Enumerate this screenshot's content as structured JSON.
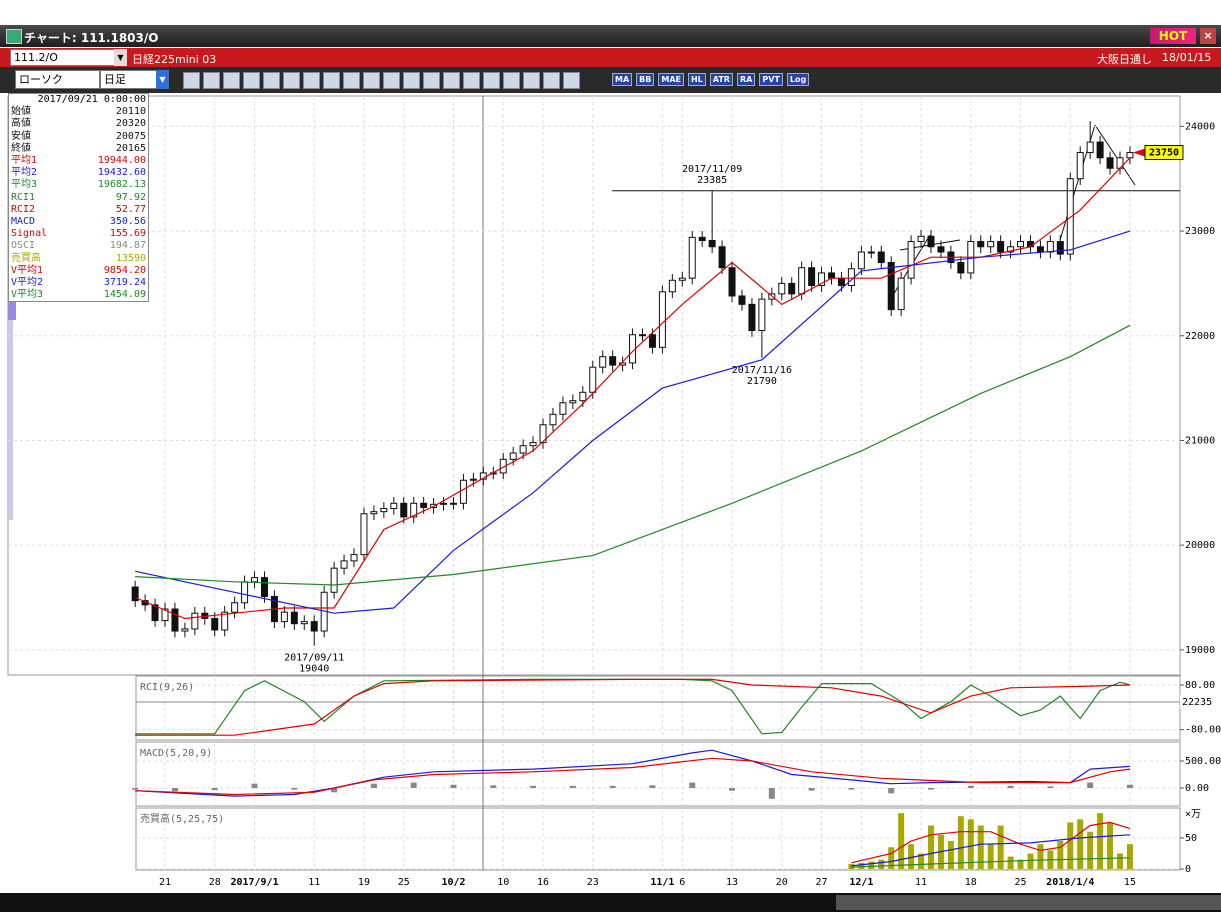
{
  "window": {
    "title": "チャート: 111.1803/O",
    "hot": "HOT"
  },
  "toolbar": {
    "symbol": "111.2/O",
    "name": "日経225mini 03",
    "session": "大阪日通し",
    "date": "18/01/15",
    "chart_kind": "ローソク",
    "period": "日足",
    "buttons": [
      "MA",
      "BB",
      "MAE",
      "HL",
      "ATR",
      "RA",
      "PVT",
      "Log"
    ]
  },
  "info_panel": {
    "date": "2017/09/21 0:00:00",
    "rows": [
      {
        "label": "始値",
        "value": "20110",
        "color": "#111111"
      },
      {
        "label": "高値",
        "value": "20320",
        "color": "#111111"
      },
      {
        "label": "安値",
        "value": "20075",
        "color": "#111111"
      },
      {
        "label": "終値",
        "value": "20165",
        "color": "#111111"
      },
      {
        "label": "平均1",
        "value": "19944.00",
        "color": "#e00000"
      },
      {
        "label": "平均2",
        "value": "19432.60",
        "color": "#1a1adc"
      },
      {
        "label": "平均3",
        "value": "19682.13",
        "color": "#1f8a1f"
      },
      {
        "label": "RCI1",
        "value": "97.92",
        "color": "#1f8a1f"
      },
      {
        "label": "RCI2",
        "value": "52.77",
        "color": "#e00000"
      },
      {
        "label": "MACD",
        "value": "350.56",
        "color": "#1a1adc"
      },
      {
        "label": "Signal",
        "value": "155.69",
        "color": "#e00000"
      },
      {
        "label": "OSCI",
        "value": "194.87",
        "color": "#888888"
      },
      {
        "label": "売買高",
        "value": "13590",
        "color": "#a8a800"
      },
      {
        "label": "V平均1",
        "value": "9854.20",
        "color": "#e00000"
      },
      {
        "label": "V平均2",
        "value": "3719.24",
        "color": "#1a1adc"
      },
      {
        "label": "V平均3",
        "value": "1454.09",
        "color": "#1f8a1f"
      }
    ]
  },
  "chart_data": [
    {
      "type": "candlestick",
      "categories": [
        null,
        null,
        null,
        "21",
        null,
        null,
        null,
        null,
        "28",
        null,
        null,
        null,
        "2017/9/1",
        null,
        null,
        null,
        null,
        null,
        "11",
        null,
        null,
        null,
        null,
        "19",
        null,
        null,
        null,
        "25",
        null,
        null,
        null,
        null,
        "10/2",
        null,
        null,
        null,
        null,
        "10",
        null,
        null,
        null,
        "16",
        null,
        null,
        null,
        null,
        "23",
        null,
        null,
        null,
        null,
        null,
        null,
        "11/1",
        null,
        "6",
        null,
        null,
        null,
        null,
        "13",
        null,
        null,
        null,
        null,
        "20",
        null,
        null,
        null,
        "27",
        null,
        null,
        null,
        "12/1",
        null,
        null,
        null,
        null,
        null,
        "11",
        null,
        null,
        null,
        null,
        "18",
        null,
        null,
        null,
        null,
        "25",
        null,
        null,
        null,
        null,
        "2018/1/4",
        null,
        null,
        null,
        null,
        null,
        "15"
      ],
      "open": [
        19600,
        19470,
        19430,
        19280,
        19390,
        19180,
        19200,
        19350,
        19300,
        19190,
        19360,
        19450,
        19650,
        19690,
        19510,
        19270,
        19360,
        19250,
        19270,
        19180,
        19550,
        19780,
        19850,
        19910,
        20300,
        20320,
        20350,
        20400,
        20270,
        20400,
        20360,
        20390,
        20400,
        20400,
        20620,
        20630,
        20690,
        20690,
        20820,
        20880,
        20950,
        20980,
        21150,
        21250,
        21360,
        21380,
        21460,
        21700,
        21800,
        21720,
        21740,
        22010,
        22010,
        21890,
        22420,
        22530,
        22550,
        22940,
        22910,
        22850,
        22650,
        22380,
        22300,
        22050,
        22350,
        22400,
        22500,
        22400,
        22650,
        22480,
        22600,
        22550,
        22480,
        22640,
        22800,
        22800,
        22700,
        22250,
        22550,
        22900,
        22950,
        22850,
        22800,
        22700,
        22600,
        22900,
        22850,
        22900,
        22800,
        22850,
        22900,
        22850,
        22800,
        22900,
        22780,
        23500,
        23750,
        23850,
        23700,
        23600,
        23700
      ],
      "high": [
        19660,
        19530,
        19490,
        19450,
        19450,
        19260,
        19410,
        19410,
        19360,
        19420,
        19510,
        19710,
        19750,
        19750,
        19570,
        19420,
        19420,
        19330,
        19330,
        19610,
        19840,
        19910,
        19970,
        20360,
        20380,
        20410,
        20460,
        20460,
        20460,
        20460,
        20450,
        20460,
        20460,
        20680,
        20690,
        20750,
        20750,
        20880,
        20940,
        21010,
        21040,
        21210,
        21310,
        21420,
        21440,
        21520,
        21760,
        21860,
        21860,
        21800,
        22070,
        22070,
        22070,
        22480,
        22590,
        22610,
        23000,
        23000,
        23385,
        22910,
        22710,
        22440,
        22360,
        22410,
        22460,
        22560,
        22560,
        22710,
        22710,
        22660,
        22660,
        22610,
        22700,
        22860,
        22860,
        22860,
        22760,
        22610,
        22960,
        23010,
        23010,
        22910,
        22860,
        22760,
        22960,
        22960,
        22960,
        22960,
        22910,
        22960,
        22960,
        22910,
        22960,
        22960,
        23560,
        23810,
        24050,
        23910,
        23760,
        23760,
        23810
      ],
      "low": [
        19410,
        19370,
        19220,
        19220,
        19120,
        19120,
        19140,
        19240,
        19130,
        19130,
        19300,
        19390,
        19590,
        19450,
        19210,
        19210,
        19190,
        19190,
        19040,
        19120,
        19490,
        19720,
        19790,
        19850,
        20240,
        20260,
        20290,
        20210,
        20210,
        20300,
        20300,
        20330,
        20340,
        20340,
        20560,
        20570,
        20630,
        20630,
        20760,
        20820,
        20890,
        20920,
        21090,
        21190,
        21300,
        21320,
        21400,
        21640,
        21660,
        21660,
        21680,
        21950,
        21830,
        21830,
        22360,
        22470,
        22490,
        22850,
        22790,
        22590,
        22320,
        22240,
        21990,
        21790,
        22290,
        22340,
        22340,
        22340,
        22420,
        22420,
        22490,
        22420,
        22420,
        22580,
        22740,
        22640,
        22190,
        22190,
        22490,
        22840,
        22790,
        22740,
        22640,
        22540,
        22540,
        22790,
        22790,
        22740,
        22740,
        22790,
        22790,
        22740,
        22740,
        22720,
        22720,
        23440,
        23690,
        23640,
        23540,
        23540,
        23640
      ],
      "close": [
        19470,
        19430,
        19280,
        19390,
        19180,
        19200,
        19350,
        19300,
        19190,
        19360,
        19450,
        19650,
        19690,
        19510,
        19270,
        19360,
        19250,
        19270,
        19180,
        19550,
        19780,
        19850,
        19910,
        20300,
        20320,
        20350,
        20400,
        20270,
        20400,
        20360,
        20390,
        20400,
        20400,
        20620,
        20630,
        20690,
        20690,
        20820,
        20880,
        20950,
        20980,
        21150,
        21250,
        21360,
        21380,
        21460,
        21700,
        21800,
        21720,
        21740,
        22010,
        22010,
        21890,
        22420,
        22530,
        22550,
        22940,
        22910,
        22850,
        22650,
        22380,
        22300,
        22050,
        22350,
        22400,
        22500,
        22400,
        22650,
        22480,
        22600,
        22550,
        22480,
        22640,
        22800,
        22800,
        22700,
        22250,
        22550,
        22900,
        22950,
        22850,
        22800,
        22700,
        22600,
        22900,
        22850,
        22900,
        22800,
        22850,
        22900,
        22850,
        22800,
        22900,
        22780,
        23500,
        23750,
        23850,
        23700,
        23600,
        23700,
        23750
      ],
      "series": [
        {
          "color": "#e00000",
          "x": [
            0,
            5,
            10,
            15,
            20,
            25,
            30,
            35,
            40,
            45,
            50,
            55,
            60,
            65,
            70,
            75,
            80,
            85,
            90,
            95,
            100
          ],
          "values": [
            19500,
            19300,
            19350,
            19400,
            19400,
            20150,
            20370,
            20640,
            20900,
            21350,
            21850,
            22300,
            22700,
            22300,
            22550,
            22550,
            22750,
            22750,
            22850,
            23200,
            23700
          ]
        },
        {
          "color": "#1a1adc",
          "x": [
            0,
            10,
            20,
            26,
            32,
            40,
            46,
            53,
            63,
            73,
            85,
            94,
            100
          ],
          "values": [
            19750,
            19550,
            19350,
            19400,
            19950,
            20500,
            21000,
            21500,
            21770,
            22620,
            22750,
            22820,
            23000
          ]
        },
        {
          "color": "#1f8a1f",
          "x": [
            0,
            10,
            20,
            32,
            46,
            60,
            73,
            85,
            94,
            100
          ],
          "values": [
            19700,
            19650,
            19620,
            19720,
            19900,
            20400,
            20900,
            21450,
            21800,
            22100
          ]
        }
      ],
      "ylim": [
        18760,
        24290
      ],
      "yticks": [
        19000,
        20000,
        21000,
        22000,
        23000,
        24000
      ],
      "annotations": [
        {
          "date": "2017/11/09",
          "price": 23385
        },
        {
          "date": "2017/11/16",
          "price": 21790
        },
        {
          "date": "2017/09/11",
          "price": 19040
        }
      ],
      "last_price": 23750
    },
    {
      "type": "line",
      "title": "RCI(9,26)",
      "ylim": [
        -110,
        105
      ],
      "yticks": [
        {
          "value": 80,
          "label": "80.00"
        },
        {
          "value": -80,
          "label": "-80.00"
        }
      ],
      "cursor_value": 22235,
      "series": [
        {
          "color": "#1f8a1f",
          "x": [
            0,
            8,
            11,
            13,
            17,
            19,
            22,
            25,
            40,
            55,
            58,
            60,
            63,
            65,
            67,
            69,
            74,
            77,
            79,
            82,
            84,
            86,
            89,
            91,
            93,
            95,
            97,
            99,
            100
          ],
          "values": [
            -95,
            -95,
            60,
            95,
            20,
            -50,
            40,
            95,
            100,
            100,
            95,
            60,
            -95,
            -90,
            0,
            85,
            85,
            20,
            -40,
            20,
            80,
            40,
            -30,
            -10,
            40,
            -40,
            60,
            90,
            80
          ]
        },
        {
          "color": "#e00000",
          "x": [
            0,
            10,
            14,
            18,
            22,
            25,
            30,
            50,
            58,
            62,
            70,
            75,
            80,
            84,
            88,
            95,
            100
          ],
          "values": [
            -100,
            -100,
            -80,
            -60,
            40,
            85,
            95,
            100,
            100,
            80,
            70,
            40,
            -20,
            40,
            70,
            75,
            80
          ]
        }
      ]
    },
    {
      "type": "line",
      "title": "MACD(5,20,9)",
      "ylim": [
        -315,
        815
      ],
      "yticks": [
        {
          "value": 500,
          "label": "500.00"
        },
        {
          "value": 0,
          "label": "0.00"
        }
      ],
      "series": [
        {
          "color": "#888888",
          "type": "bar",
          "x": [
            0,
            4,
            8,
            12,
            16,
            20,
            24,
            28,
            32,
            36,
            40,
            44,
            48,
            52,
            56,
            60,
            64,
            68,
            72,
            76,
            80,
            84,
            88,
            92,
            96,
            100
          ],
          "values": [
            -30,
            -60,
            -40,
            80,
            -30,
            -80,
            80,
            100,
            60,
            50,
            40,
            40,
            40,
            50,
            100,
            -50,
            -200,
            -50,
            -30,
            -100,
            -30,
            40,
            40,
            30,
            100,
            60
          ]
        },
        {
          "color": "#1a1adc",
          "x": [
            0,
            10,
            16,
            20,
            25,
            30,
            40,
            50,
            56,
            58,
            62,
            66,
            72,
            76,
            80,
            90,
            94,
            96,
            100
          ],
          "values": [
            -50,
            -150,
            -120,
            0,
            200,
            300,
            350,
            450,
            650,
            700,
            500,
            250,
            150,
            80,
            100,
            120,
            100,
            350,
            400
          ]
        },
        {
          "color": "#e00000",
          "x": [
            0,
            10,
            18,
            24,
            30,
            40,
            50,
            58,
            62,
            68,
            75,
            85,
            94,
            98,
            100
          ],
          "values": [
            -50,
            -120,
            -80,
            150,
            250,
            300,
            380,
            550,
            500,
            300,
            180,
            100,
            100,
            300,
            350
          ]
        }
      ]
    },
    {
      "type": "line",
      "title": "売買高(5,25,75)",
      "unit": "×万",
      "ylim": [
        0,
        95
      ],
      "yticks": [
        0,
        50
      ],
      "series": [
        {
          "color": "#a8a800",
          "type": "bar",
          "x": [
            72,
            73,
            74,
            75,
            76,
            77,
            78,
            79,
            80,
            81,
            82,
            83,
            84,
            85,
            86,
            87,
            88,
            89,
            90,
            91,
            92,
            93,
            94,
            95,
            96,
            97,
            98,
            99,
            100
          ],
          "values": [
            8,
            10,
            12,
            15,
            35,
            90,
            40,
            25,
            70,
            55,
            45,
            85,
            80,
            70,
            40,
            70,
            20,
            15,
            25,
            40,
            30,
            45,
            75,
            80,
            60,
            90,
            75,
            25,
            40
          ]
        },
        {
          "color": "#e00000",
          "x": [
            72,
            76,
            78,
            80,
            83,
            86,
            89,
            91,
            93,
            96,
            98,
            100
          ],
          "values": [
            10,
            25,
            45,
            55,
            60,
            60,
            40,
            30,
            35,
            70,
            75,
            65
          ]
        },
        {
          "color": "#1a1adc",
          "x": [
            72,
            76,
            80,
            85,
            90,
            95,
            100
          ],
          "values": [
            5,
            12,
            25,
            40,
            42,
            50,
            55
          ]
        },
        {
          "color": "#1f8a1f",
          "x": [
            72,
            80,
            90,
            100
          ],
          "values": [
            3,
            8,
            14,
            18
          ]
        }
      ]
    }
  ]
}
